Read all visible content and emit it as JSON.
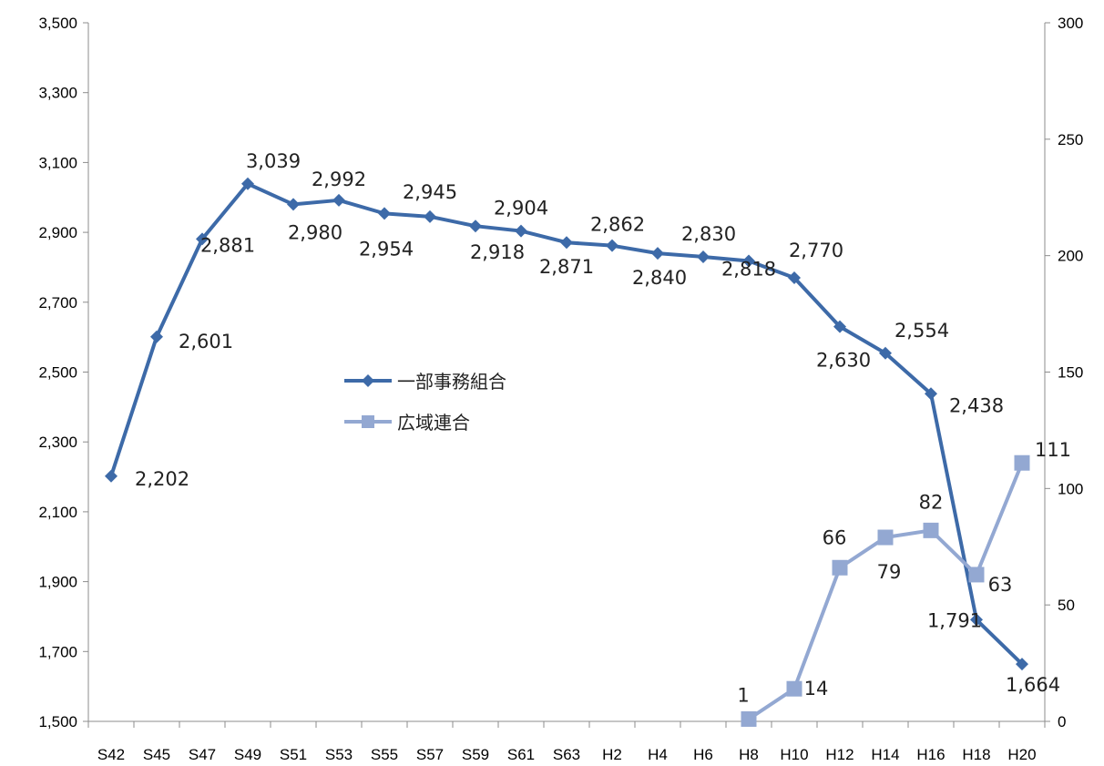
{
  "chart_data": {
    "type": "line",
    "categories": [
      "S42",
      "S45",
      "S47",
      "S49",
      "S51",
      "S53",
      "S55",
      "S57",
      "S59",
      "S61",
      "S63",
      "H2",
      "H4",
      "H6",
      "H8",
      "H10",
      "H12",
      "H14",
      "H16",
      "H18",
      "H20"
    ],
    "series": [
      {
        "name": "一部事務組合",
        "axis": "left",
        "color": "#3d6aa8",
        "marker": "diamond",
        "values": [
          2202,
          2601,
          2881,
          3039,
          2980,
          2992,
          2954,
          2945,
          2918,
          2904,
          2871,
          2862,
          2840,
          2830,
          2818,
          2770,
          2630,
          2554,
          2438,
          1791,
          1664
        ],
        "labels": [
          "2,202",
          "2,601",
          "2,881",
          "3,039",
          "2,980",
          "2,992",
          "2,954",
          "2,945",
          "2,918",
          "2,904",
          "2,871",
          "2,862",
          "2,840",
          "2,830",
          "2,818",
          "2,770",
          "2,630",
          "2,554",
          "2,438",
          "1,791",
          "1,664"
        ]
      },
      {
        "name": "広域連合",
        "axis": "right",
        "color": "#93a8d2",
        "marker": "square",
        "values": [
          null,
          null,
          null,
          null,
          null,
          null,
          null,
          null,
          null,
          null,
          null,
          null,
          null,
          null,
          1,
          14,
          66,
          79,
          82,
          63,
          111
        ],
        "labels": [
          "",
          "",
          "",
          "",
          "",
          "",
          "",
          "",
          "",
          "",
          "",
          "",
          "",
          "",
          "1",
          "14",
          "66",
          "79",
          "82",
          "63",
          "111"
        ]
      }
    ],
    "ylim_left": [
      1500,
      3500
    ],
    "ylim_right": [
      0,
      300
    ],
    "yticks_left": [
      "1,500",
      "1,700",
      "1,900",
      "2,100",
      "2,300",
      "2,500",
      "2,700",
      "2,900",
      "3,100",
      "3,300",
      "3,500"
    ],
    "yticks_right": [
      "0",
      "50",
      "100",
      "150",
      "200",
      "250",
      "300"
    ],
    "grid": false,
    "legend": "center-left"
  }
}
